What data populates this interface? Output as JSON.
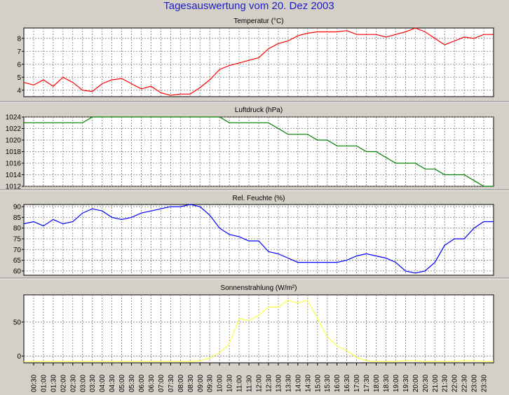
{
  "page": {
    "title": "Tagesauswertung vom 20. Dez 2003"
  },
  "colors": {
    "background": "#d4d0c8",
    "plot_background": "#ffffff",
    "grid": "#7a7a7a",
    "title": "#1c1ccc",
    "temperature": "#ff0000",
    "pressure": "#008000",
    "humidity": "#0000ff",
    "solar": "#ffff44"
  },
  "x_labels": [
    "00:30",
    "01:00",
    "01:30",
    "02:00",
    "02:30",
    "03:00",
    "03:30",
    "04:00",
    "04:30",
    "05:00",
    "05:30",
    "06:00",
    "06:30",
    "07:00",
    "07:30",
    "08:00",
    "08:30",
    "09:00",
    "09:30",
    "10:00",
    "10:30",
    "11:00",
    "11:30",
    "12:00",
    "12:30",
    "13:00",
    "13:30",
    "14:00",
    "14:30",
    "15:00",
    "15:30",
    "16:00",
    "16:30",
    "17:00",
    "17:30",
    "18:00",
    "18:30",
    "19:00",
    "19:30",
    "20:00",
    "20:30",
    "21:00",
    "21:30",
    "22:00",
    "22:30",
    "23:00",
    "23:30"
  ],
  "chart_data": [
    {
      "type": "line",
      "title": "Temperatur (°C)",
      "ylim": [
        3.5,
        8.8
      ],
      "yticks": [
        4,
        5,
        6,
        7,
        8
      ],
      "grid": true,
      "color": "#ff0000",
      "x": [
        "00:00",
        "00:30",
        "01:00",
        "01:30",
        "02:00",
        "02:30",
        "03:00",
        "03:30",
        "04:00",
        "04:30",
        "05:00",
        "05:30",
        "06:00",
        "06:30",
        "07:00",
        "07:30",
        "08:00",
        "08:30",
        "09:00",
        "09:30",
        "10:00",
        "10:30",
        "11:00",
        "11:30",
        "12:00",
        "12:30",
        "13:00",
        "13:30",
        "14:00",
        "14:30",
        "15:00",
        "15:30",
        "16:00",
        "16:30",
        "17:00",
        "17:30",
        "18:00",
        "18:30",
        "19:00",
        "19:30",
        "20:00",
        "20:30",
        "21:00",
        "21:30",
        "22:00",
        "22:30",
        "23:00",
        "23:30",
        "24:00"
      ],
      "values": [
        4.6,
        4.4,
        4.8,
        4.3,
        5.0,
        4.6,
        4.0,
        3.9,
        4.5,
        4.8,
        4.9,
        4.5,
        4.1,
        4.3,
        3.8,
        3.6,
        3.7,
        3.7,
        4.2,
        4.8,
        5.6,
        5.9,
        6.1,
        6.3,
        6.5,
        7.2,
        7.6,
        7.8,
        8.2,
        8.4,
        8.5,
        8.5,
        8.5,
        8.6,
        8.3,
        8.3,
        8.3,
        8.1,
        8.3,
        8.5,
        8.8,
        8.5,
        8.0,
        7.5,
        7.8,
        8.1,
        8.0,
        8.3,
        8.3
      ]
    },
    {
      "type": "line",
      "title": "Luftdruck (hPa)",
      "ylim": [
        1012,
        1024
      ],
      "yticks": [
        1012,
        1014,
        1016,
        1018,
        1020,
        1022,
        1024
      ],
      "grid": true,
      "color": "#008000",
      "x": [
        "00:00",
        "00:30",
        "01:00",
        "01:30",
        "02:00",
        "02:30",
        "03:00",
        "03:30",
        "04:00",
        "04:30",
        "05:00",
        "05:30",
        "06:00",
        "06:30",
        "07:00",
        "07:30",
        "08:00",
        "08:30",
        "09:00",
        "09:30",
        "10:00",
        "10:30",
        "11:00",
        "11:30",
        "12:00",
        "12:30",
        "13:00",
        "13:30",
        "14:00",
        "14:30",
        "15:00",
        "15:30",
        "16:00",
        "16:30",
        "17:00",
        "17:30",
        "18:00",
        "18:30",
        "19:00",
        "19:30",
        "20:00",
        "20:30",
        "21:00",
        "21:30",
        "22:00",
        "22:30",
        "23:00",
        "23:30",
        "24:00"
      ],
      "values": [
        1023,
        1023,
        1023,
        1023,
        1023,
        1023,
        1023,
        1024,
        1024,
        1024,
        1024,
        1024,
        1024,
        1024,
        1024,
        1024,
        1024,
        1024,
        1024,
        1024,
        1024,
        1023,
        1023,
        1023,
        1023,
        1023,
        1022,
        1021,
        1021,
        1021,
        1020,
        1020,
        1019,
        1019,
        1019,
        1018,
        1018,
        1017,
        1016,
        1016,
        1016,
        1015,
        1015,
        1014,
        1014,
        1014,
        1013,
        1012,
        1012
      ]
    },
    {
      "type": "line",
      "title": "Rel. Feuchte (%)",
      "ylim": [
        58,
        91
      ],
      "yticks": [
        60,
        65,
        70,
        75,
        80,
        85,
        90
      ],
      "grid": true,
      "color": "#0000ff",
      "x": [
        "00:00",
        "00:30",
        "01:00",
        "01:30",
        "02:00",
        "02:30",
        "03:00",
        "03:30",
        "04:00",
        "04:30",
        "05:00",
        "05:30",
        "06:00",
        "06:30",
        "07:00",
        "07:30",
        "08:00",
        "08:30",
        "09:00",
        "09:30",
        "10:00",
        "10:30",
        "11:00",
        "11:30",
        "12:00",
        "12:30",
        "13:00",
        "13:30",
        "14:00",
        "14:30",
        "15:00",
        "15:30",
        "16:00",
        "16:30",
        "17:00",
        "17:30",
        "18:00",
        "18:30",
        "19:00",
        "19:30",
        "20:00",
        "20:30",
        "21:00",
        "21:30",
        "22:00",
        "22:30",
        "23:00",
        "23:30",
        "24:00"
      ],
      "values": [
        82,
        83,
        81,
        84,
        82,
        83,
        87,
        89,
        88,
        85,
        84,
        85,
        87,
        88,
        89,
        90,
        90,
        91,
        90,
        86,
        80,
        77,
        76,
        74,
        74,
        69,
        68,
        66,
        64,
        64,
        64,
        64,
        64,
        65,
        67,
        68,
        67,
        66,
        64,
        60,
        59,
        60,
        64,
        72,
        75,
        75,
        80,
        83,
        83
      ]
    },
    {
      "type": "line",
      "title": "Sonnenstrahlung (W/m²)",
      "ylim": [
        -10,
        90
      ],
      "yticks": [
        0,
        50
      ],
      "grid": true,
      "color": "#ffff44",
      "x": [
        "00:00",
        "00:30",
        "01:00",
        "01:30",
        "02:00",
        "02:30",
        "03:00",
        "03:30",
        "04:00",
        "04:30",
        "05:00",
        "05:30",
        "06:00",
        "06:30",
        "07:00",
        "07:30",
        "08:00",
        "08:30",
        "09:00",
        "09:30",
        "10:00",
        "10:30",
        "11:00",
        "11:30",
        "12:00",
        "12:30",
        "13:00",
        "13:30",
        "14:00",
        "14:30",
        "15:00",
        "15:30",
        "16:00",
        "16:30",
        "17:00",
        "17:30",
        "18:00",
        "18:30",
        "19:00",
        "19:30",
        "20:00",
        "20:30",
        "21:00",
        "21:30",
        "22:00",
        "22:30",
        "23:00",
        "23:30",
        "24:00"
      ],
      "values": [
        -8,
        -8,
        -8,
        -8,
        -8,
        -8,
        -8,
        -8,
        -8,
        -8,
        -8,
        -8,
        -8,
        -8,
        -8,
        -8,
        -8,
        -8,
        -7,
        -3,
        5,
        18,
        55,
        52,
        60,
        72,
        72,
        82,
        78,
        82,
        55,
        28,
        15,
        8,
        -2,
        -7,
        -8,
        -8,
        -8,
        -7,
        -7,
        -8,
        -8,
        -8,
        -8,
        -7,
        -7,
        -8,
        -8
      ]
    }
  ]
}
